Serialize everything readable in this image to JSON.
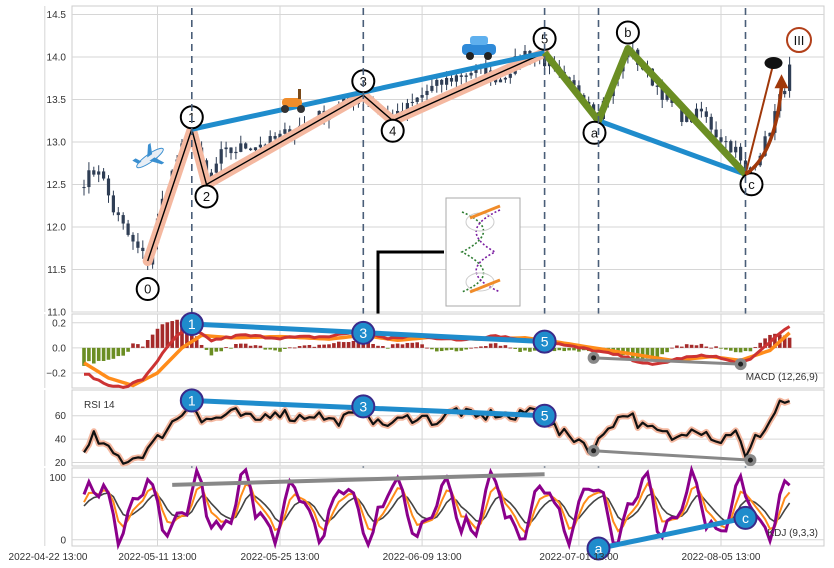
{
  "chart_data": [
    {
      "type": "candlestick",
      "panel": "price",
      "ylim": [
        11.0,
        14.6
      ],
      "yticks": [
        "11.0",
        "11.5",
        "12.0",
        "12.5",
        "13.0",
        "13.5",
        "14.0",
        "14.5"
      ],
      "close_keypoints": [
        [
          0,
          12.55
        ],
        [
          3,
          12.7
        ],
        [
          6,
          12.2
        ],
        [
          10,
          11.8
        ],
        [
          13,
          11.6
        ],
        [
          16,
          12.3
        ],
        [
          19,
          12.8
        ],
        [
          22,
          13.15
        ],
        [
          25,
          12.5
        ],
        [
          28,
          12.85
        ],
        [
          33,
          12.95
        ],
        [
          38,
          13.0
        ],
        [
          43,
          13.15
        ],
        [
          48,
          13.3
        ],
        [
          53,
          13.45
        ],
        [
          57,
          13.55
        ],
        [
          60,
          13.4
        ],
        [
          63,
          13.25
        ],
        [
          66,
          13.4
        ],
        [
          70,
          13.6
        ],
        [
          75,
          13.75
        ],
        [
          80,
          13.85
        ],
        [
          85,
          13.75
        ],
        [
          90,
          14.05
        ],
        [
          94,
          13.95
        ],
        [
          98,
          13.7
        ],
        [
          102,
          13.55
        ],
        [
          105,
          13.35
        ],
        [
          108,
          13.7
        ],
        [
          111,
          14.1
        ],
        [
          115,
          13.8
        ],
        [
          119,
          13.5
        ],
        [
          123,
          13.25
        ],
        [
          126,
          13.35
        ],
        [
          129,
          13.1
        ],
        [
          133,
          12.9
        ],
        [
          135,
          12.6
        ],
        [
          139,
          13.0
        ],
        [
          142,
          13.5
        ],
        [
          144,
          13.85
        ]
      ],
      "wave_points": [
        {
          "label": "0",
          "x": 13,
          "y": 11.6
        },
        {
          "label": "1",
          "x": 22,
          "y": 13.15
        },
        {
          "label": "2",
          "x": 25,
          "y": 12.5
        },
        {
          "label": "3",
          "x": 57,
          "y": 13.55
        },
        {
          "label": "4",
          "x": 63,
          "y": 13.25
        },
        {
          "label": "5",
          "x": 94,
          "y": 14.05
        },
        {
          "label": "a",
          "x": 105,
          "y": 13.25
        },
        {
          "label": "b",
          "x": 111,
          "y": 14.1
        },
        {
          "label": "c",
          "x": 135,
          "y": 12.62
        }
      ],
      "badge_label": "III"
    },
    {
      "type": "bar+line",
      "panel": "macd",
      "title": "MACD (12,26,9)",
      "ylim": [
        -0.32,
        0.27
      ],
      "yticks": [
        "0.2",
        "0.0",
        "−0.2"
      ],
      "dif_keypoints": [
        [
          0,
          -0.2
        ],
        [
          4,
          -0.28
        ],
        [
          8,
          -0.32
        ],
        [
          12,
          -0.25
        ],
        [
          16,
          -0.05
        ],
        [
          19,
          0.1
        ],
        [
          22,
          0.15
        ],
        [
          26,
          0.06
        ],
        [
          32,
          0.1
        ],
        [
          40,
          0.08
        ],
        [
          50,
          0.09
        ],
        [
          57,
          0.14
        ],
        [
          62,
          0.07
        ],
        [
          68,
          0.1
        ],
        [
          76,
          0.06
        ],
        [
          84,
          0.1
        ],
        [
          90,
          0.06
        ],
        [
          94,
          0.06
        ],
        [
          98,
          0.02
        ],
        [
          104,
          -0.02
        ],
        [
          110,
          -0.07
        ],
        [
          116,
          -0.14
        ],
        [
          122,
          -0.08
        ],
        [
          128,
          -0.06
        ],
        [
          133,
          -0.12
        ],
        [
          136,
          -0.1
        ],
        [
          140,
          0.05
        ],
        [
          144,
          0.18
        ]
      ],
      "signal_keypoints": [
        [
          0,
          -0.12
        ],
        [
          5,
          -0.24
        ],
        [
          10,
          -0.3
        ],
        [
          15,
          -0.2
        ],
        [
          20,
          0.0
        ],
        [
          24,
          0.1
        ],
        [
          30,
          0.08
        ],
        [
          40,
          0.09
        ],
        [
          50,
          0.07
        ],
        [
          57,
          0.1
        ],
        [
          64,
          0.06
        ],
        [
          72,
          0.09
        ],
        [
          80,
          0.07
        ],
        [
          90,
          0.08
        ],
        [
          96,
          0.05
        ],
        [
          104,
          0.0
        ],
        [
          112,
          -0.05
        ],
        [
          120,
          -0.1
        ],
        [
          128,
          -0.07
        ],
        [
          134,
          -0.1
        ],
        [
          140,
          -0.02
        ],
        [
          144,
          0.12
        ]
      ],
      "marks": [
        {
          "label": "1",
          "x": 22,
          "y": 0.19
        },
        {
          "label": "3",
          "x": 57,
          "y": 0.12
        },
        {
          "label": "5",
          "x": 94,
          "y": 0.05
        }
      ]
    },
    {
      "type": "line",
      "panel": "rsi",
      "title": "RSI 14",
      "ylim": [
        17,
        82
      ],
      "yticks": [
        "60",
        "40",
        "20"
      ],
      "rsi_keypoints": [
        [
          0,
          25
        ],
        [
          2,
          42
        ],
        [
          5,
          30
        ],
        [
          8,
          22
        ],
        [
          11,
          25
        ],
        [
          14,
          35
        ],
        [
          17,
          50
        ],
        [
          20,
          62
        ],
        [
          22,
          73
        ],
        [
          24,
          55
        ],
        [
          27,
          58
        ],
        [
          31,
          62
        ],
        [
          35,
          55
        ],
        [
          39,
          65
        ],
        [
          43,
          58
        ],
        [
          47,
          62
        ],
        [
          51,
          55
        ],
        [
          55,
          60
        ],
        [
          57,
          68
        ],
        [
          60,
          52
        ],
        [
          64,
          55
        ],
        [
          68,
          60
        ],
        [
          72,
          55
        ],
        [
          76,
          65
        ],
        [
          80,
          58
        ],
        [
          84,
          62
        ],
        [
          88,
          57
        ],
        [
          91,
          66
        ],
        [
          94,
          60
        ],
        [
          97,
          45
        ],
        [
          101,
          40
        ],
        [
          104,
          30
        ],
        [
          107,
          52
        ],
        [
          111,
          63
        ],
        [
          114,
          50
        ],
        [
          118,
          45
        ],
        [
          121,
          40
        ],
        [
          124,
          52
        ],
        [
          127,
          46
        ],
        [
          130,
          38
        ],
        [
          133,
          50
        ],
        [
          135,
          22
        ],
        [
          137,
          40
        ],
        [
          140,
          55
        ],
        [
          142,
          72
        ],
        [
          144,
          72
        ]
      ],
      "marks": [
        {
          "label": "1",
          "x": 22,
          "y": 73
        },
        {
          "label": "3",
          "x": 57,
          "y": 68
        },
        {
          "label": "5",
          "x": 94,
          "y": 60
        }
      ]
    },
    {
      "type": "line",
      "panel": "kdj",
      "title": "KDJ (9,3,3)",
      "ylim": [
        -10,
        115
      ],
      "yticks": [
        "100",
        "0"
      ],
      "marks": [
        {
          "label": "a",
          "x": 105,
          "y": -14
        },
        {
          "label": "c",
          "x": 135,
          "y": 35
        }
      ]
    }
  ],
  "xaxis": {
    "n": 145,
    "labels": [
      {
        "text": "2022-04-22 13:00",
        "x": -8
      },
      {
        "text": "2022-05-11 13:00",
        "x": 15
      },
      {
        "text": "2022-05-25 13:00",
        "x": 40
      },
      {
        "text": "2022-06-09 13:00",
        "x": 69
      },
      {
        "text": "2022-07-01 13:00",
        "x": 101
      },
      {
        "text": "2022-08-05 13:00",
        "x": 130
      }
    ]
  },
  "colors": {
    "grid": "#d6d6d6",
    "wave": "#1f8ccc",
    "correction": "#6b8e23",
    "impulse_band": "#f4b8a0",
    "dashed": "#4a5e78",
    "candle": "#2f3e55",
    "macd_pos": "#a52a2a",
    "macd_neg": "#6b8e23",
    "dif": "#cc3333",
    "signal": "#ff8c1a",
    "rsi": "#111111",
    "kdj_j": "#8b008b",
    "kdj_k": "#ff8c1a",
    "kdj_d": "#444444",
    "divergence": "#888888",
    "arrow": "#a0380a"
  }
}
